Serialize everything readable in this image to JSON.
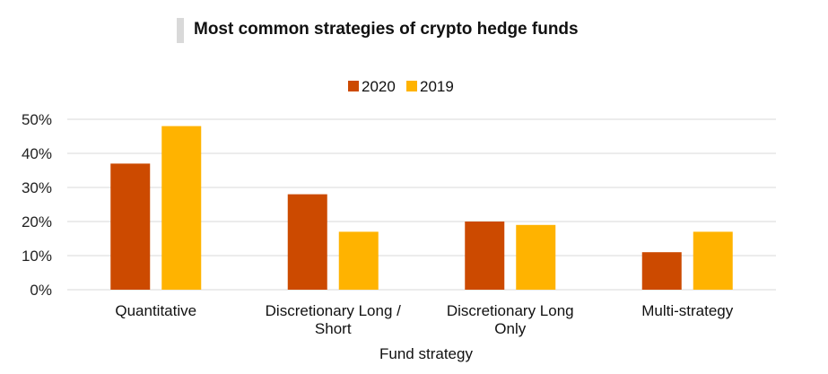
{
  "chart_data": {
    "type": "bar",
    "title": "Most common strategies of crypto hedge funds",
    "xlabel": "Fund strategy",
    "ylabel": "",
    "categories": [
      [
        "Quantitative"
      ],
      [
        "Discretionary Long /",
        "Short"
      ],
      [
        "Discretionary Long",
        "Only"
      ],
      [
        "Multi-strategy"
      ]
    ],
    "series": [
      {
        "name": "2020",
        "color": "#cc4a00",
        "values": [
          37,
          28,
          20,
          11
        ]
      },
      {
        "name": "2019",
        "color": "#ffb300",
        "values": [
          48,
          17,
          19,
          17
        ]
      }
    ],
    "ylim": [
      0,
      50
    ],
    "yticks": [
      0,
      10,
      20,
      30,
      40,
      50
    ],
    "ytick_labels": [
      "0%",
      "10%",
      "20%",
      "30%",
      "40%",
      "50%"
    ],
    "grid": true,
    "legend_position": "top-center",
    "gridline_color": "#d9d9d9"
  }
}
